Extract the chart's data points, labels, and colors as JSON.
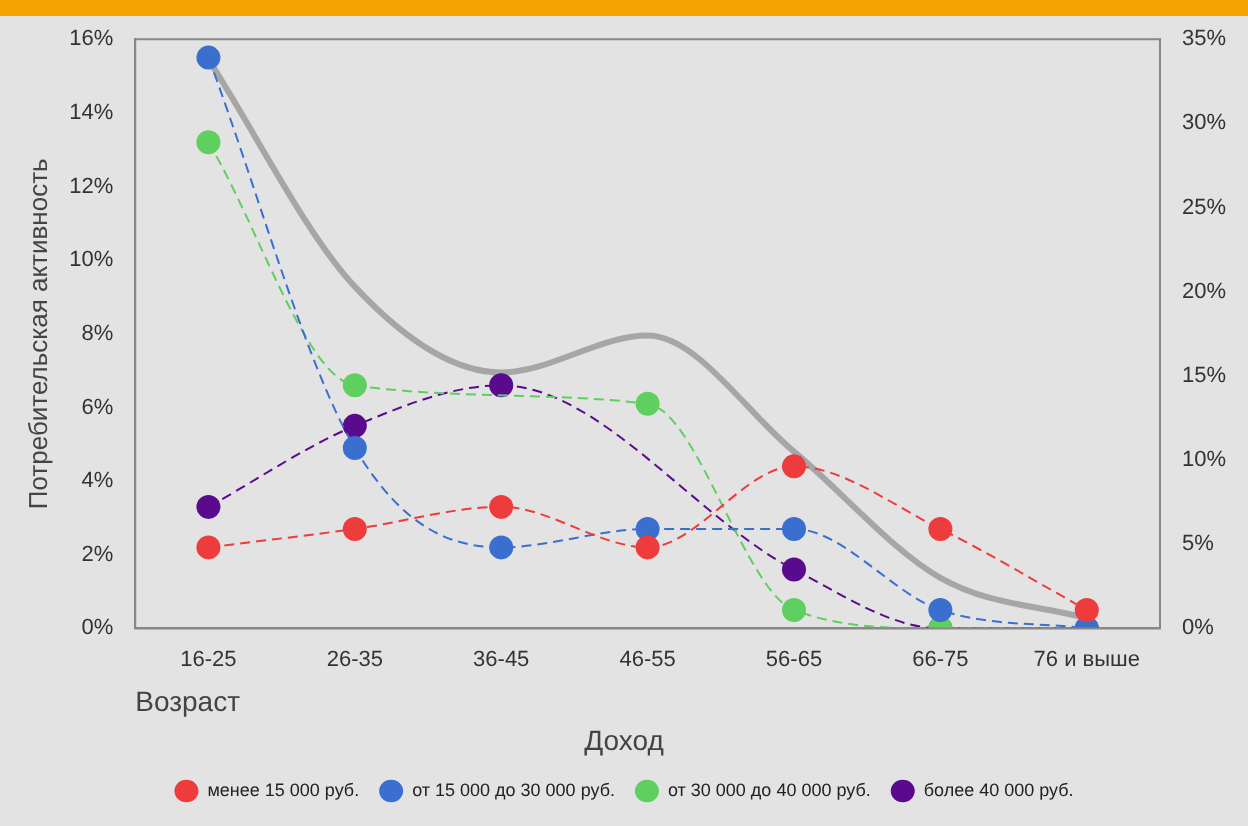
{
  "chart_data": {
    "type": "line",
    "ylabel": "Потребительская активность",
    "xlabel": "Возраст",
    "legend_title": "Доход",
    "legend": "bottom",
    "grid": false,
    "marker": "circle",
    "line_style": "dashed",
    "categories": [
      "16-25",
      "26-35",
      "36-45",
      "46-55",
      "56-65",
      "66-75",
      "76 и выше"
    ],
    "ylim": [
      0,
      16
    ],
    "yticks": [
      {
        "value": 0,
        "label": "0%"
      },
      {
        "value": 2,
        "label": "2%"
      },
      {
        "value": 4,
        "label": "4%"
      },
      {
        "value": 6,
        "label": "6%"
      },
      {
        "value": 8,
        "label": "8%"
      },
      {
        "value": 10,
        "label": "10%"
      },
      {
        "value": 12,
        "label": "12%"
      },
      {
        "value": 14,
        "label": "14%"
      },
      {
        "value": 16,
        "label": "16%"
      }
    ],
    "y2lim": [
      0,
      35
    ],
    "y2ticks": [
      {
        "value": 0,
        "label": "0%"
      },
      {
        "value": 5,
        "label": "5%"
      },
      {
        "value": 10,
        "label": "10%"
      },
      {
        "value": 15,
        "label": "15%"
      },
      {
        "value": 20,
        "label": "20%"
      },
      {
        "value": 25,
        "label": "25%"
      },
      {
        "value": 30,
        "label": "30%"
      },
      {
        "value": 35,
        "label": "35%"
      }
    ],
    "series": [
      {
        "color": "#a6a6a6",
        "axis": "y2",
        "marker": "none",
        "line_style": "solid",
        "values": [
          33.8,
          20.3,
          15.2,
          17.4,
          10.5,
          3,
          0.6
        ]
      },
      {
        "name": "менее 15 000 руб.",
        "color": "#ee3b3b",
        "values": [
          2.2,
          2.7,
          3.3,
          2.2,
          4.4,
          2.7,
          0.5
        ]
      },
      {
        "name": "от 15 000 до 30 000 руб.",
        "color": "#3a6fd0",
        "values": [
          15.5,
          4.9,
          2.2,
          2.7,
          2.7,
          0.5,
          0
        ]
      },
      {
        "name": "от 30 000 до 40 000 руб.",
        "color": "#5fcf5f",
        "values": [
          13.2,
          6.6,
          null,
          6.1,
          0.5,
          0,
          0
        ]
      },
      {
        "name": "более 40 000 руб.",
        "color": "#5a0a8c",
        "values": [
          3.3,
          5.5,
          6.6,
          null,
          1.6,
          0,
          0
        ]
      }
    ]
  }
}
